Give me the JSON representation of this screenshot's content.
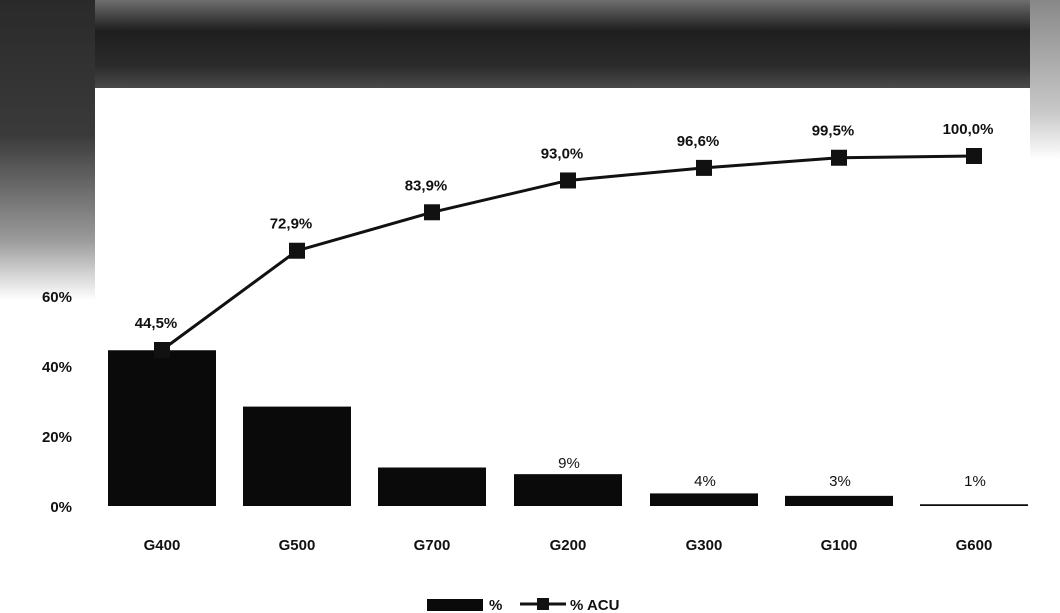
{
  "chart_data": {
    "type": "bar",
    "title": "",
    "xlabel": "",
    "ylabel": "",
    "categories": [
      "G400",
      "G500",
      "G700",
      "G200",
      "G300",
      "G100",
      "G600"
    ],
    "series": [
      {
        "name": "%",
        "kind": "bar",
        "values": [
          44.5,
          28.4,
          11.0,
          9.1,
          3.6,
          2.9,
          0.5
        ],
        "labels": [
          "",
          "",
          "",
          "9%",
          "4%",
          "3%",
          "1%"
        ]
      },
      {
        "name": "% ACU",
        "kind": "line",
        "marker": "square",
        "values": [
          44.5,
          72.9,
          83.9,
          93.0,
          96.6,
          99.5,
          100.0
        ],
        "labels": [
          "44,5%",
          "72,9%",
          "83,9%",
          "93,0%",
          "96,6%",
          "99,5%",
          "100,0%"
        ]
      }
    ],
    "yticks": [
      "0%",
      "20%",
      "40%",
      "60%"
    ],
    "ylim": [
      0,
      100
    ],
    "legend": "bottom-center",
    "colors": {
      "bars": "#0a0a0a",
      "line": "#111111"
    }
  }
}
